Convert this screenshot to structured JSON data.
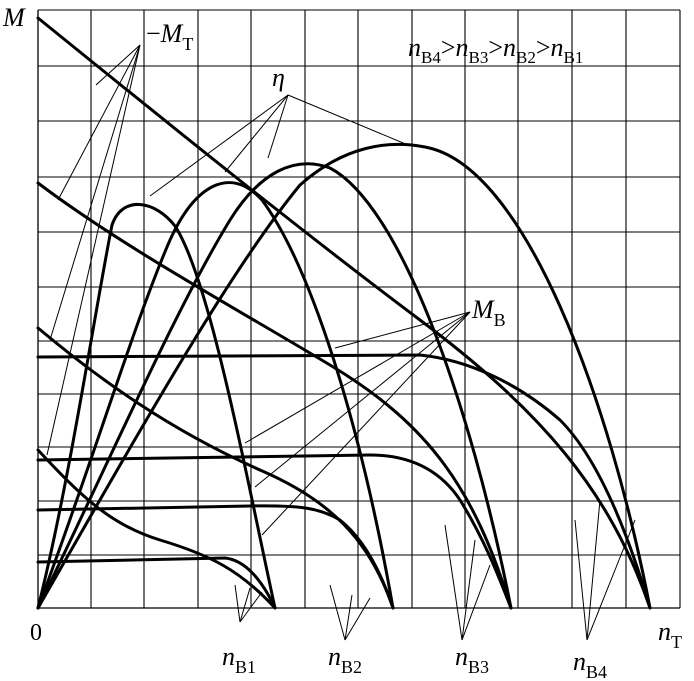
{
  "axes": {
    "y_label": "M",
    "x_label": "n",
    "x_label_sub": "T",
    "origin": "0"
  },
  "labels": {
    "torque_turbine": {
      "sign": "−",
      "symbol": "M",
      "sub": "T"
    },
    "efficiency": {
      "symbol": "η"
    },
    "torque_pump": {
      "symbol": "M",
      "sub": "B"
    }
  },
  "ordering": {
    "terms": [
      {
        "symbol": "n",
        "sub": "B4"
      },
      {
        "symbol": "n",
        "sub": "B3"
      },
      {
        "symbol": "n",
        "sub": "B2"
      },
      {
        "symbol": "n",
        "sub": "B1"
      }
    ],
    "operator": ">"
  },
  "speed_labels": [
    {
      "symbol": "n",
      "sub": "B1"
    },
    {
      "symbol": "n",
      "sub": "B2"
    },
    {
      "symbol": "n",
      "sub": "B3"
    },
    {
      "symbol": "n",
      "sub": "B4"
    }
  ],
  "grid": {
    "columns": 12,
    "rows": 11
  }
}
